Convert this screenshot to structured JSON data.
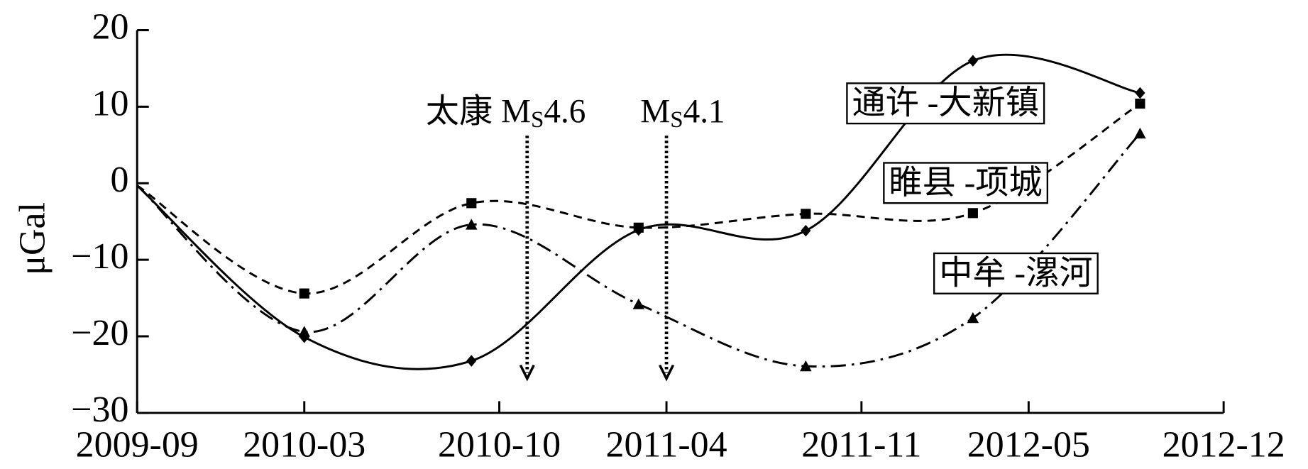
{
  "chart_data": {
    "type": "line",
    "y_label": "μGal",
    "x": [
      "2009-09",
      "2010-03",
      "2010-09",
      "2011-03",
      "2011-09",
      "2012-03",
      "2012-09"
    ],
    "xlim": [
      "2009-09",
      "2012-12"
    ],
    "xticks": [
      "2009-09",
      "2010-03",
      "2010-10",
      "2011-04",
      "2011-11",
      "2012-05",
      "2012-12"
    ],
    "ylim": [
      -30,
      20
    ],
    "yticks": [
      {
        "value": -30,
        "label": "−30"
      },
      {
        "value": -20,
        "label": "−20"
      },
      {
        "value": -10,
        "label": "−10"
      },
      0,
      10,
      20
    ],
    "series": [
      {
        "name": "通许 -大新镇",
        "color": "#000000",
        "dash": "solid",
        "marker": "diamond",
        "values": [
          -0.3,
          -20.1,
          -23.2,
          -6.1,
          -6.2,
          16.0,
          11.8
        ]
      },
      {
        "name": "睢县 -项城",
        "color": "#000000",
        "dash": "dashed",
        "marker": "square",
        "values": [
          -0.3,
          -14.4,
          -2.6,
          -5.8,
          -4.0,
          -3.9,
          10.4
        ]
      },
      {
        "name": "中牟 -漯河",
        "color": "#000000",
        "dash": "dashdot",
        "marker": "triangle",
        "values": [
          -0.3,
          -19.4,
          -5.4,
          -15.8,
          -23.9,
          -17.6,
          6.5
        ]
      }
    ],
    "annotations": [
      {
        "x": "2010-11",
        "text": "太康 M",
        "sub": "S",
        "tail": "4.6"
      },
      {
        "x": "2011-04",
        "text": "M",
        "sub": "S",
        "tail": "4.1"
      }
    ]
  }
}
